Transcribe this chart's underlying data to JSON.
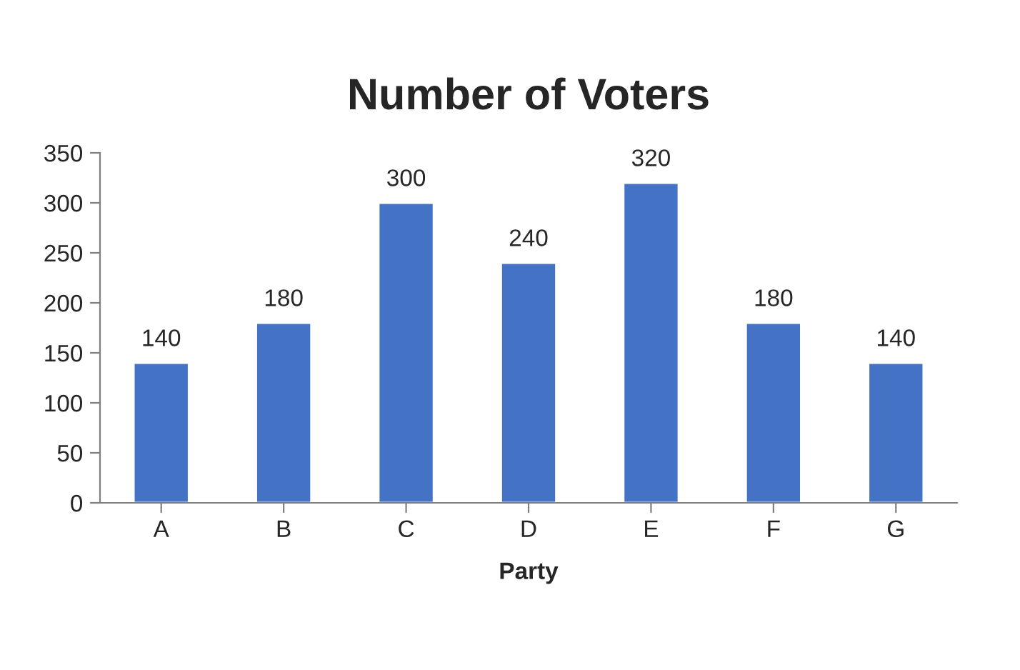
{
  "chart_data": {
    "type": "bar",
    "title": "Number of Voters",
    "xlabel": "Party",
    "categories": [
      "A",
      "B",
      "C",
      "D",
      "E",
      "F",
      "G"
    ],
    "values": [
      140,
      180,
      300,
      240,
      320,
      180,
      140
    ],
    "color": "#4472c4",
    "ylim": [
      0,
      350
    ],
    "yticks": [
      0,
      50,
      100,
      150,
      200,
      250,
      300,
      350
    ],
    "data_labels": true,
    "grid": false,
    "legend": false
  }
}
